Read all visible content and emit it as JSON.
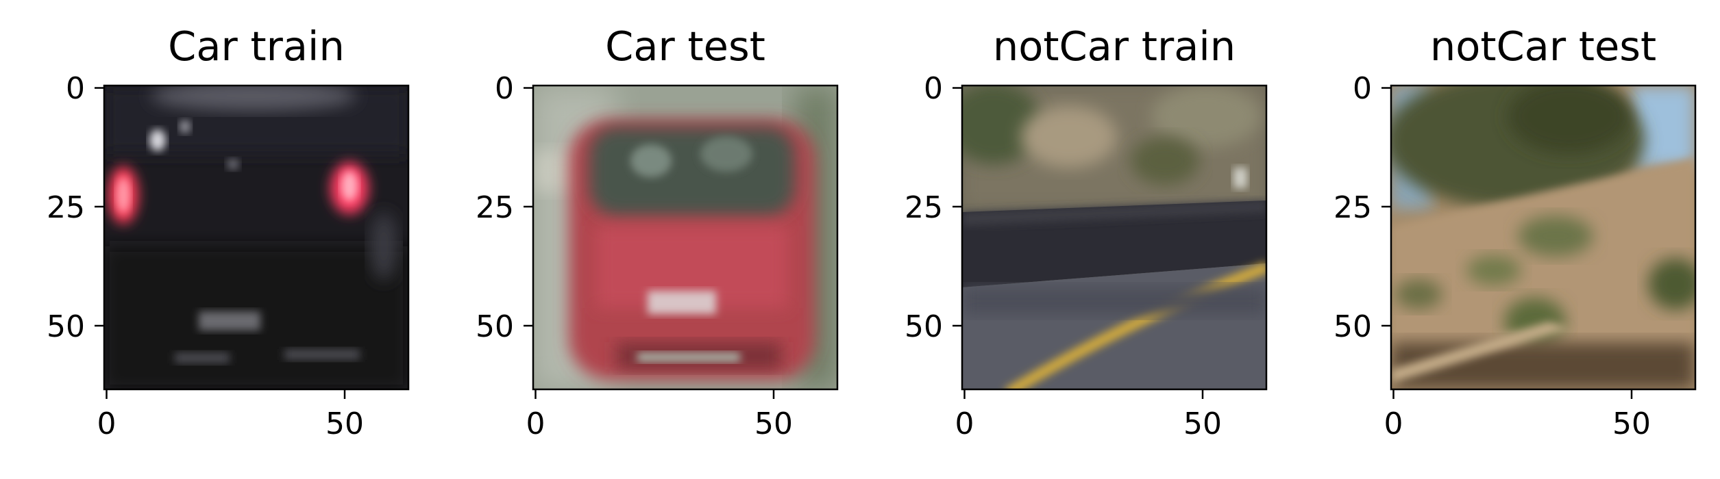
{
  "chart_data": [
    {
      "type": "image",
      "title": "Car train",
      "xticks": [
        0,
        50
      ],
      "yticks": [
        0,
        25,
        50
      ],
      "xlim": [
        -0.5,
        63.5
      ],
      "ylim": [
        63.5,
        -0.5
      ],
      "scene": "car-rear-dark"
    },
    {
      "type": "image",
      "title": "Car test",
      "xticks": [
        0,
        50
      ],
      "yticks": [
        0,
        25,
        50
      ],
      "xlim": [
        -0.5,
        63.5
      ],
      "ylim": [
        63.5,
        -0.5
      ],
      "scene": "car-front-red"
    },
    {
      "type": "image",
      "title": "notCar train",
      "xticks": [
        0,
        50
      ],
      "yticks": [
        0,
        25,
        50
      ],
      "xlim": [
        -0.5,
        63.5
      ],
      "ylim": [
        63.5,
        -0.5
      ],
      "scene": "road-curve"
    },
    {
      "type": "image",
      "title": "notCar test",
      "xticks": [
        0,
        50
      ],
      "yticks": [
        0,
        25,
        50
      ],
      "xlim": [
        -0.5,
        63.5
      ],
      "ylim": [
        63.5,
        -0.5
      ],
      "scene": "hillside-bushes"
    }
  ]
}
